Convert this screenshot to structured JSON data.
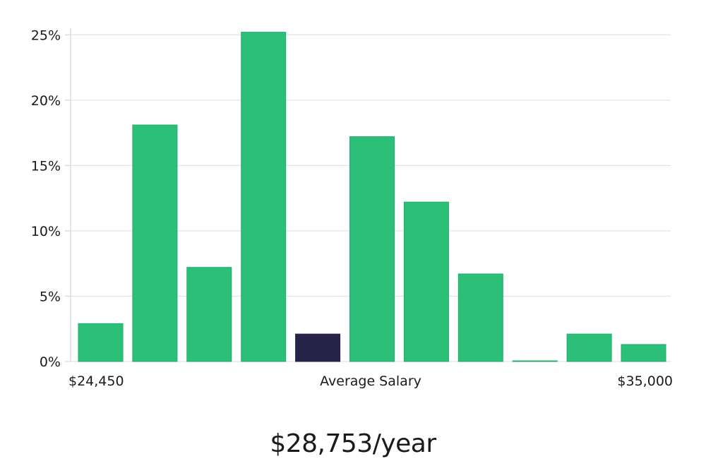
{
  "chart_data": {
    "type": "bar",
    "ylim": [
      0,
      25.5
    ],
    "yticks": [
      {
        "value": 0,
        "label": "0%"
      },
      {
        "value": 5,
        "label": "5%"
      },
      {
        "value": 10,
        "label": "10%"
      },
      {
        "value": 15,
        "label": "15%"
      },
      {
        "value": 20,
        "label": "20%"
      },
      {
        "value": 25,
        "label": "25%"
      }
    ],
    "values": [
      2.9,
      18.1,
      7.2,
      25.2,
      2.1,
      17.2,
      12.2,
      6.7,
      0.05,
      2.1,
      1.3
    ],
    "highlight_index": 4,
    "x_labels": {
      "left": "$24,450",
      "center": "Average Salary",
      "right": "$35,000"
    },
    "grid": true
  },
  "headline": "$28,753/year",
  "colors": {
    "bar": "#2bbf78",
    "bar_stroke": "#22ad6a",
    "highlight": "#272347",
    "grid": "#e3e3e3",
    "axis": "#d6d6d6"
  }
}
